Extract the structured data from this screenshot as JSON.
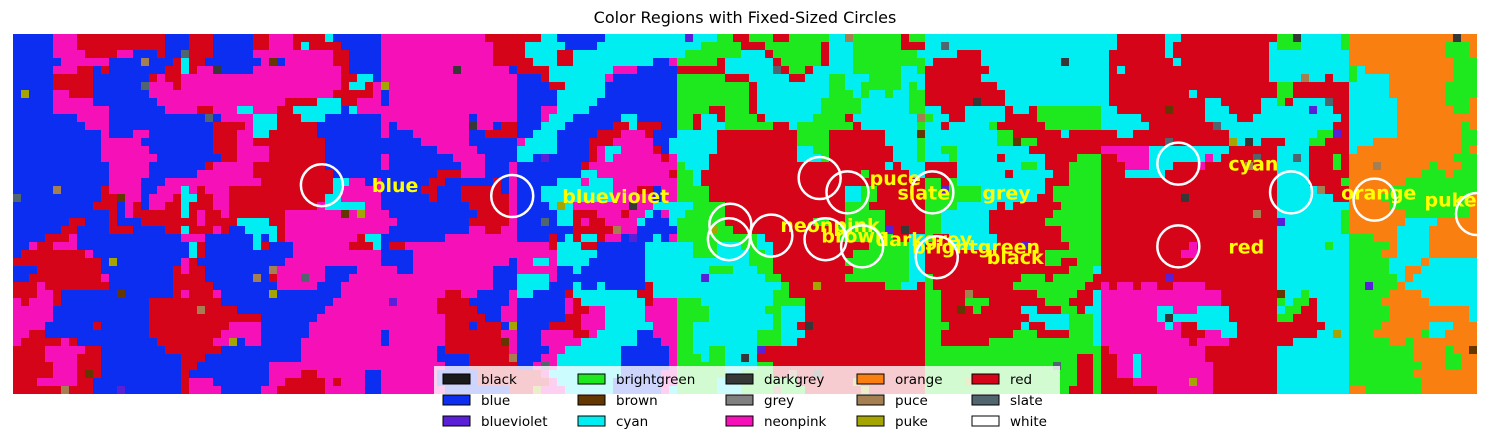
{
  "chart_data": {
    "type": "heatmap",
    "title": "Color Regions with Fixed-Sized Circles",
    "xlabel": "",
    "ylabel": "",
    "axes_visible": false,
    "grid": false,
    "legend_placement": "lower center",
    "legend_columns": 5,
    "categories": [
      {
        "name": "black",
        "color": "#1a1a1a"
      },
      {
        "name": "blue",
        "color": "#0b2ef0"
      },
      {
        "name": "blueviolet",
        "color": "#5a20d8"
      },
      {
        "name": "brightgreen",
        "color": "#1ee81e"
      },
      {
        "name": "brown",
        "color": "#653700"
      },
      {
        "name": "cyan",
        "color": "#00eef2"
      },
      {
        "name": "darkgrey",
        "color": "#363737"
      },
      {
        "name": "grey",
        "color": "#808080"
      },
      {
        "name": "neonpink",
        "color": "#f510b8"
      },
      {
        "name": "orange",
        "color": "#f98010"
      },
      {
        "name": "puce",
        "color": "#a57e52"
      },
      {
        "name": "puke",
        "color": "#a5a502"
      },
      {
        "name": "red",
        "color": "#d50418"
      },
      {
        "name": "slate",
        "color": "#51656e"
      },
      {
        "name": "white",
        "color": "#ffffff"
      }
    ],
    "annotations": [
      {
        "label": "blue",
        "x": 0.211,
        "y": 0.58
      },
      {
        "label": "blueviolet",
        "x": 0.341,
        "y": 0.55
      },
      {
        "label": "cyan",
        "x": 0.796,
        "y": 0.64
      },
      {
        "label": "orange",
        "x": 0.873,
        "y": 0.56
      },
      {
        "label": "puke",
        "x": 0.93,
        "y": 0.54
      },
      {
        "label": "white",
        "x": 1.0,
        "y": 0.5
      },
      {
        "label": "puce",
        "x": 0.551,
        "y": 0.6
      },
      {
        "label": "grey",
        "x": 0.628,
        "y": 0.56
      },
      {
        "label": "slate",
        "x": 0.57,
        "y": 0.56
      },
      {
        "label": "neonpink",
        "x": 0.49,
        "y": 0.47
      },
      {
        "label": "brown",
        "x": 0.518,
        "y": 0.44
      },
      {
        "label": "darkgrey",
        "x": 0.555,
        "y": 0.43
      },
      {
        "label": "brightgreen",
        "x": 0.58,
        "y": 0.41
      },
      {
        "label": "black",
        "x": 0.631,
        "y": 0.38
      },
      {
        "label": "red",
        "x": 0.796,
        "y": 0.41
      },
      {
        "label": "nameless-circle",
        "x": 0.489,
        "y": 0.43
      }
    ]
  },
  "colors": {
    "annotation_text": "#ffff00",
    "circle_stroke": "#ffffff",
    "background": "#ffffff"
  }
}
